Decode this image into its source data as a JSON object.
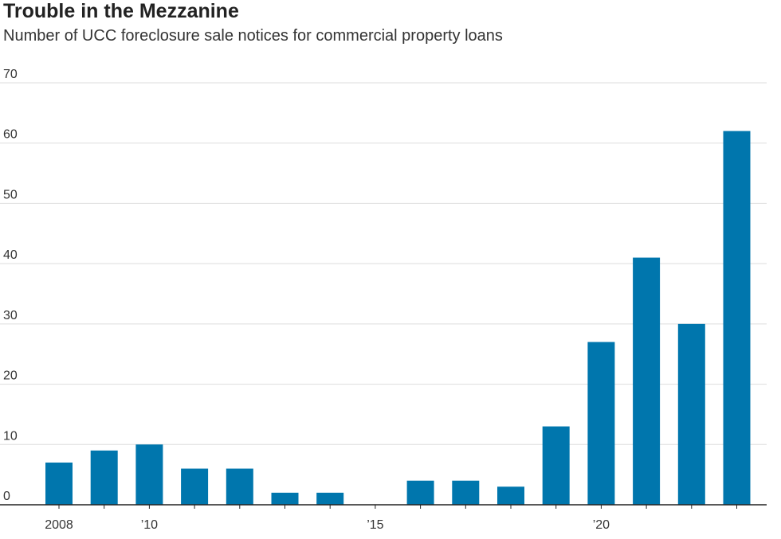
{
  "chart_data": {
    "type": "bar",
    "title": "Trouble in the Mezzanine",
    "subtitle": "Number of UCC foreclosure sale notices for commercial property loans",
    "xlabel": "",
    "ylabel": "",
    "ylim": [
      0,
      70
    ],
    "yticks": [
      0,
      10,
      20,
      30,
      40,
      50,
      60,
      70
    ],
    "ytick_labels": [
      "0",
      "10",
      "20",
      "30",
      "40",
      "50",
      "60",
      "70"
    ],
    "grid": true,
    "categories": [
      2008,
      2009,
      2010,
      2011,
      2012,
      2013,
      2014,
      2015,
      2016,
      2017,
      2018,
      2019,
      2020,
      2021,
      2022,
      2023
    ],
    "values": [
      7,
      9,
      10,
      6,
      6,
      2,
      2,
      0,
      4,
      4,
      3,
      13,
      27,
      41,
      30,
      62
    ],
    "xtick_labels": [
      {
        "year": 2008,
        "label": "2008"
      },
      {
        "year": 2010,
        "label": "’10"
      },
      {
        "year": 2015,
        "label": "’15"
      },
      {
        "year": 2020,
        "label": "’20"
      }
    ],
    "bar_color": "#0076ad",
    "grid_color": "#dddddd",
    "axis_color": "#222222"
  }
}
